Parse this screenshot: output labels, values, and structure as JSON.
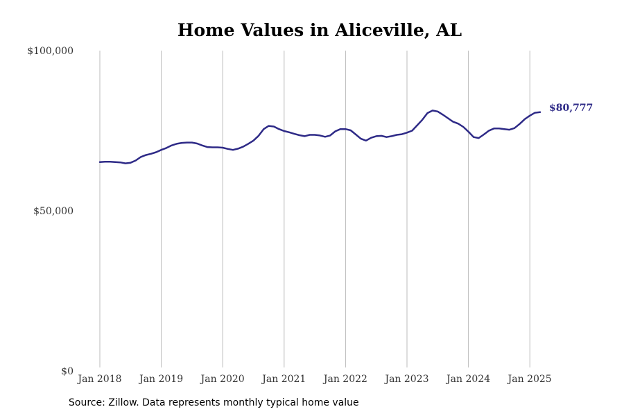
{
  "chart_data": {
    "type": "line",
    "title": "Home Values in Aliceville, AL",
    "xlabel": "",
    "ylabel": "",
    "xlim": [
      "2018-01",
      "2025-06"
    ],
    "ylim": [
      0,
      100000
    ],
    "grid": {
      "vertical": true,
      "horizontal": false
    },
    "legend": "none",
    "colors": {
      "line": "#2e2a87",
      "grid": "#bbbbbb",
      "end_label": "#2e2a87"
    },
    "x_ticks": [
      {
        "date": "2018-01",
        "label": "Jan 2018"
      },
      {
        "date": "2019-01",
        "label": "Jan 2019"
      },
      {
        "date": "2020-01",
        "label": "Jan 2020"
      },
      {
        "date": "2021-01",
        "label": "Jan 2021"
      },
      {
        "date": "2022-01",
        "label": "Jan 2022"
      },
      {
        "date": "2023-01",
        "label": "Jan 2023"
      },
      {
        "date": "2024-01",
        "label": "Jan 2024"
      },
      {
        "date": "2025-01",
        "label": "Jan 2025"
      }
    ],
    "y_ticks": [
      {
        "value": 0,
        "label": "$0"
      },
      {
        "value": 50000,
        "label": "$50,000"
      },
      {
        "value": 100000,
        "label": "$100,000"
      }
    ],
    "end_label": "$80,777",
    "series": [
      {
        "x": [
          "2018-01",
          "2018-02",
          "2018-03",
          "2018-04",
          "2018-05",
          "2018-06",
          "2018-07",
          "2018-08",
          "2018-09",
          "2018-10",
          "2018-11",
          "2018-12",
          "2019-01",
          "2019-02",
          "2019-03",
          "2019-04",
          "2019-05",
          "2019-06",
          "2019-07",
          "2019-08",
          "2019-09",
          "2019-10",
          "2019-11",
          "2019-12",
          "2020-01",
          "2020-02",
          "2020-03",
          "2020-04",
          "2020-05",
          "2020-06",
          "2020-07",
          "2020-08",
          "2020-09",
          "2020-10",
          "2020-11",
          "2020-12",
          "2021-01",
          "2021-02",
          "2021-03",
          "2021-04",
          "2021-05",
          "2021-06",
          "2021-07",
          "2021-08",
          "2021-09",
          "2021-10",
          "2021-11",
          "2021-12",
          "2022-01",
          "2022-02",
          "2022-03",
          "2022-04",
          "2022-05",
          "2022-06",
          "2022-07",
          "2022-08",
          "2022-09",
          "2022-10",
          "2022-11",
          "2022-12",
          "2023-01",
          "2023-02",
          "2023-03",
          "2023-04",
          "2023-05",
          "2023-06",
          "2023-07",
          "2023-08",
          "2023-09",
          "2023-10",
          "2023-11",
          "2023-12",
          "2024-01",
          "2024-02",
          "2024-03",
          "2024-04",
          "2024-05",
          "2024-06",
          "2024-07",
          "2024-08",
          "2024-09",
          "2024-10",
          "2024-11",
          "2024-12",
          "2025-01",
          "2025-02",
          "2025-03"
        ],
        "y": [
          65200,
          65300,
          65300,
          65200,
          65100,
          64800,
          65000,
          65700,
          66800,
          67400,
          67800,
          68300,
          69000,
          69600,
          70400,
          70900,
          71200,
          71300,
          71300,
          71000,
          70400,
          69900,
          69800,
          69800,
          69700,
          69300,
          69000,
          69400,
          70000,
          70900,
          71900,
          73400,
          75500,
          76500,
          76300,
          75500,
          74900,
          74500,
          74000,
          73600,
          73300,
          73700,
          73700,
          73500,
          73100,
          73500,
          74800,
          75500,
          75500,
          75100,
          73800,
          72500,
          71900,
          72800,
          73300,
          73400,
          73000,
          73300,
          73700,
          73900,
          74400,
          75000,
          76700,
          78400,
          80500,
          81300,
          81000,
          80000,
          78900,
          77800,
          77200,
          76200,
          74700,
          73000,
          72700,
          73800,
          75000,
          75700,
          75700,
          75500,
          75300,
          75800,
          77100,
          78600,
          79700,
          80600,
          80777
        ]
      }
    ]
  },
  "source": "Source: Zillow. Data represents monthly typical home value"
}
